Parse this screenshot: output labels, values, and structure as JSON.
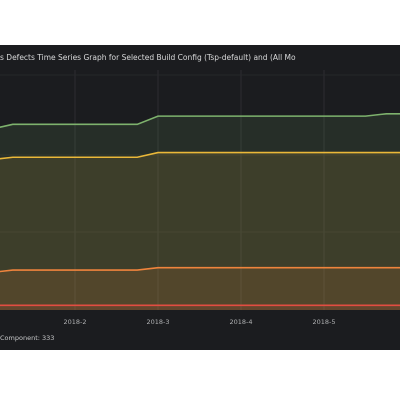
{
  "chart_data": {
    "type": "line",
    "title": "s Defects Time Series Graph for Selected Build Config (Tsp-default) and (All Mo",
    "categories": [
      null,
      null,
      null,
      null,
      "2018-2",
      null,
      null,
      null,
      "2018-3",
      null,
      null,
      null,
      "2018-4",
      null,
      null,
      null,
      "2018-5",
      null,
      null,
      null,
      null
    ],
    "ylim": [
      0,
      100
    ],
    "series": [
      {
        "color": "#7eb26d",
        "values": [
          77,
          79,
          79,
          79,
          79,
          79,
          79,
          79,
          82.5,
          82.5,
          82.5,
          82.5,
          82.5,
          82.5,
          82.5,
          82.5,
          82.5,
          82.5,
          82.5,
          83.5,
          83.5
        ]
      },
      {
        "color": "#eab839",
        "values": [
          64,
          65,
          65,
          65,
          65,
          65,
          65,
          65,
          67,
          67,
          67,
          67,
          67,
          67,
          67,
          67,
          67,
          67,
          67,
          67,
          67
        ]
      },
      {
        "color": "#ef843c",
        "values": [
          16,
          17,
          17,
          17,
          17,
          17,
          17,
          17,
          18,
          18,
          18,
          18,
          18,
          18,
          18,
          18,
          18,
          18,
          18,
          18,
          18
        ]
      },
      {
        "color": "#e24d42",
        "values": [
          2,
          2,
          2,
          2,
          2,
          2,
          2,
          2,
          2,
          2,
          2,
          2,
          2,
          2,
          2,
          2,
          2,
          2,
          2,
          2,
          2
        ]
      }
    ],
    "legend_text": "Component: 333",
    "grid": true
  }
}
